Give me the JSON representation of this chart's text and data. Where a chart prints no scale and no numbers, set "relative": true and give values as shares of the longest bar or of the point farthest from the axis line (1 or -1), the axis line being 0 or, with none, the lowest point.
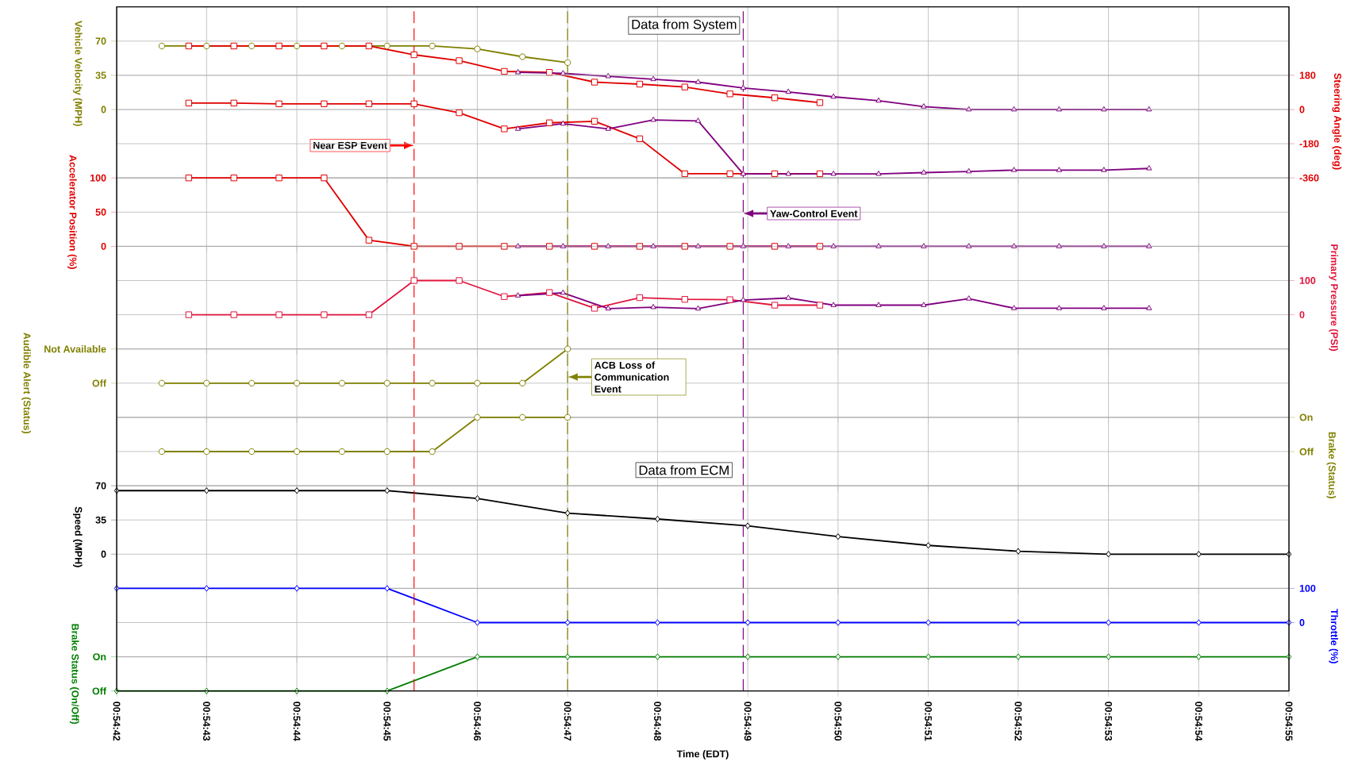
{
  "chart_data": [
    {
      "type": "line",
      "title": "Data from System",
      "ylabel": "Vehicle Velocity (MPH)",
      "y2label": "Steering Angle (deg)",
      "grid": true,
      "tick_labels": "y",
      "xlim": [
        0.911667,
        0.915278
      ],
      "xticks": [
        {
          "value": 0.911667,
          "label": null
        },
        {
          "value": 0.911944,
          "label": null
        },
        {
          "value": 0.912222,
          "label": null
        },
        {
          "value": 0.9125,
          "label": null
        },
        {
          "value": 0.912778,
          "label": null
        },
        {
          "value": 0.913056,
          "label": null
        },
        {
          "value": 0.913333,
          "label": null
        },
        {
          "value": 0.913611,
          "label": null
        },
        {
          "value": 0.913889,
          "label": null
        },
        {
          "value": 0.914167,
          "label": null
        },
        {
          "value": 0.914444,
          "label": null
        },
        {
          "value": 0.914722,
          "label": null
        },
        {
          "value": 0.915,
          "label": null
        },
        {
          "value": 0.915278,
          "label": null
        }
      ],
      "ylim": [
        -70,
        105
      ],
      "yticks": [
        0,
        35,
        70
      ],
      "y2lim": [
        -360,
        540
      ],
      "y2ticks": [
        -360,
        -180,
        0,
        180
      ],
      "series": [
        {
          "color": "#808000",
          "marker": "circle",
          "axis": "y",
          "x": [
            0.911806,
            0.911944,
            0.912083,
            0.912222,
            0.912361,
            0.9125,
            0.912639,
            0.912778,
            0.912917,
            0.913056
          ],
          "values": [
            65,
            65,
            65,
            65,
            65,
            65,
            65,
            62,
            54,
            48
          ]
        },
        {
          "color": "#e00000",
          "marker": "square",
          "axis": "y",
          "x": [
            0.911889,
            0.912028,
            0.912167,
            0.912306,
            0.912444,
            0.912583,
            0.912722,
            0.912861,
            0.913,
            0.913139,
            0.913278,
            0.913417,
            0.913556,
            0.913694,
            0.913833
          ],
          "values": [
            65,
            65,
            65,
            65,
            65,
            56,
            50,
            39,
            38,
            28,
            26,
            23,
            16,
            12,
            7
          ]
        },
        {
          "color": "#800080",
          "marker": "triangle",
          "axis": "y",
          "x": [
            0.912903,
            0.913042,
            0.913181,
            0.91332,
            0.913458,
            0.913597,
            0.913736,
            0.913875,
            0.914014,
            0.914153,
            0.914292,
            0.914431,
            0.91457,
            0.914708,
            0.914847
          ],
          "values": [
            38,
            37,
            34,
            31,
            28,
            22,
            18,
            13,
            9,
            3,
            0,
            0,
            0,
            0,
            0
          ]
        },
        {
          "color": "#e00000",
          "marker": "square",
          "axis": "y2",
          "x": [
            0.911889,
            0.912028,
            0.912167,
            0.912306,
            0.912444,
            0.912583,
            0.912722,
            0.912861,
            0.913,
            0.913139,
            0.913278,
            0.913417,
            0.913556,
            0.913694,
            0.913833
          ],
          "values": [
            34,
            34,
            30,
            30,
            30,
            30,
            -17,
            -102,
            -70,
            -62,
            -154,
            -338,
            -338,
            -338,
            -338
          ]
        },
        {
          "color": "#800080",
          "marker": "triangle",
          "axis": "y2",
          "x": [
            0.912903,
            0.913042,
            0.913181,
            0.91332,
            0.913458,
            0.913597,
            0.913736,
            0.913875,
            0.914014,
            0.914153,
            0.914292,
            0.914431,
            0.91457,
            0.914708,
            0.914847
          ],
          "values": [
            -102,
            -75,
            -102,
            -55,
            -60,
            -339,
            -339,
            -339,
            -339,
            -332,
            -326,
            -319,
            -319,
            -319,
            -310
          ]
        }
      ],
      "ref_lines": [
        {
          "axis": "x",
          "value": 0.912583,
          "label": "Near ESP Event",
          "color": "#ff0000",
          "line_style": "dashed"
        },
        {
          "axis": "x",
          "value": 0.913056,
          "color": "#808000",
          "line_style": "dashed"
        },
        {
          "axis": "x",
          "value": 0.913597,
          "color": "#800080",
          "line_style": "dashed"
        }
      ]
    },
    {
      "type": "line",
      "ylabel": "Accelerator Position (%)",
      "grid": true,
      "tick_labels": "y",
      "xlim": [
        0.911667,
        0.915278
      ],
      "xticks": [
        {
          "value": 0.911667,
          "label": null
        },
        {
          "value": 0.911944,
          "label": null
        },
        {
          "value": 0.912222,
          "label": null
        },
        {
          "value": 0.9125,
          "label": null
        },
        {
          "value": 0.912778,
          "label": null
        },
        {
          "value": 0.913056,
          "label": null
        },
        {
          "value": 0.913333,
          "label": null
        },
        {
          "value": 0.913611,
          "label": null
        },
        {
          "value": 0.913889,
          "label": null
        },
        {
          "value": 0.914167,
          "label": null
        },
        {
          "value": 0.914444,
          "label": null
        },
        {
          "value": 0.914722,
          "label": null
        },
        {
          "value": 0.915,
          "label": null
        },
        {
          "value": 0.915278,
          "label": null
        }
      ],
      "ylim": [
        0,
        100
      ],
      "yticks": [
        0,
        50,
        100
      ],
      "series": [
        {
          "color": "#e00000",
          "marker": "square",
          "axis": "y",
          "x": [
            0.911889,
            0.912028,
            0.912167,
            0.912306,
            0.912444,
            0.912583,
            0.912722,
            0.912861,
            0.913,
            0.913139,
            0.913278,
            0.913417,
            0.913556,
            0.913694,
            0.913833
          ],
          "values": [
            100,
            100,
            100,
            100,
            9,
            0,
            0,
            0,
            0,
            0,
            0,
            0,
            0,
            0,
            0
          ]
        },
        {
          "color": "#800080",
          "marker": "triangle",
          "axis": "y",
          "x": [
            0.912903,
            0.913042,
            0.913181,
            0.91332,
            0.913458,
            0.913597,
            0.913736,
            0.913875,
            0.914014,
            0.914153,
            0.914292,
            0.914431,
            0.91457,
            0.914708,
            0.914847
          ],
          "values": [
            0,
            0,
            0,
            0,
            0,
            0,
            0,
            0,
            0,
            0,
            0,
            0,
            0,
            0,
            0
          ]
        }
      ],
      "ref_lines": [
        {
          "axis": "x",
          "value": 0.912583,
          "color": "#ff0000",
          "line_style": "dashed"
        },
        {
          "axis": "x",
          "value": 0.913056,
          "color": "#808000",
          "line_style": "dashed"
        },
        {
          "axis": "x",
          "value": 0.913597,
          "label": "Yaw-Control Event",
          "color": "#800080",
          "line_style": "dashed"
        }
      ]
    },
    {
      "type": "line",
      "y2label": "Primary Pressure (PSI)",
      "grid": true,
      "tick_labels": "y",
      "xlim": [
        0.911667,
        0.915278
      ],
      "xticks": [
        {
          "value": 0.911667,
          "label": null
        },
        {
          "value": 0.911944,
          "label": null
        },
        {
          "value": 0.912222,
          "label": null
        },
        {
          "value": 0.9125,
          "label": null
        },
        {
          "value": 0.912778,
          "label": null
        },
        {
          "value": 0.913056,
          "label": null
        },
        {
          "value": 0.913333,
          "label": null
        },
        {
          "value": 0.913611,
          "label": null
        },
        {
          "value": 0.913889,
          "label": null
        },
        {
          "value": 0.914167,
          "label": null
        },
        {
          "value": 0.914444,
          "label": null
        },
        {
          "value": 0.914722,
          "label": null
        },
        {
          "value": 0.915,
          "label": null
        },
        {
          "value": 0.915278,
          "label": null
        }
      ],
      "y2lim": [
        -100,
        200
      ],
      "y2ticks": [
        0,
        100
      ],
      "series": [
        {
          "color": "#e0143c",
          "marker": "square",
          "axis": "y2",
          "x": [
            0.911889,
            0.912028,
            0.912167,
            0.912306,
            0.912444,
            0.912583,
            0.912722,
            0.912861,
            0.913,
            0.913139,
            0.913278,
            0.913417,
            0.913556,
            0.913694,
            0.913833
          ],
          "values": [
            0,
            0,
            0,
            0,
            0,
            100,
            100,
            53,
            65,
            19,
            50,
            45,
            44,
            28,
            28
          ]
        },
        {
          "color": "#800080",
          "marker": "triangle",
          "axis": "y2",
          "x": [
            0.912903,
            0.913042,
            0.913181,
            0.91332,
            0.913458,
            0.913597,
            0.913736,
            0.913875,
            0.914014,
            0.914153,
            0.914292,
            0.914431,
            0.91457,
            0.914708,
            0.914847
          ],
          "values": [
            56,
            64,
            18,
            22,
            18,
            43,
            49,
            28,
            28,
            28,
            47,
            19,
            19,
            19,
            19
          ]
        }
      ],
      "ref_lines": [
        {
          "axis": "x",
          "value": 0.912583,
          "color": "#ff0000",
          "line_style": "dashed"
        },
        {
          "axis": "x",
          "value": 0.913056,
          "color": "#808000",
          "line_style": "dashed"
        },
        {
          "axis": "x",
          "value": 0.913597,
          "color": "#800080",
          "line_style": "dashed"
        }
      ]
    },
    {
      "type": "line",
      "ylabel": "Audible Alert (Status)",
      "grid": true,
      "tick_labels": "y",
      "relative": true,
      "annotations": [
        "Off",
        "Not Available"
      ],
      "xlim": [
        0.911667,
        0.915278
      ],
      "xticks": [
        {
          "value": 0.911667,
          "label": null
        },
        {
          "value": 0.911944,
          "label": null
        },
        {
          "value": 0.912222,
          "label": null
        },
        {
          "value": 0.9125,
          "label": null
        },
        {
          "value": 0.912778,
          "label": null
        },
        {
          "value": 0.913056,
          "label": null
        },
        {
          "value": 0.913333,
          "label": null
        },
        {
          "value": 0.913611,
          "label": null
        },
        {
          "value": 0.913889,
          "label": null
        },
        {
          "value": 0.914167,
          "label": null
        },
        {
          "value": 0.914444,
          "label": null
        },
        {
          "value": 0.914722,
          "label": null
        },
        {
          "value": 0.915,
          "label": null
        },
        {
          "value": 0.915278,
          "label": null
        }
      ],
      "series": [
        {
          "color": "#808000",
          "marker": "circle",
          "axis": "y",
          "x": [
            0.911806,
            0.911944,
            0.912083,
            0.912222,
            0.912361,
            0.9125,
            0.912639,
            0.912778,
            0.912917,
            0.913056
          ],
          "values": [
            0,
            0,
            0,
            0,
            0,
            0,
            0,
            0,
            0,
            1
          ]
        }
      ],
      "ref_lines": [
        {
          "axis": "x",
          "value": 0.912583,
          "color": "#ff0000",
          "line_style": "dashed"
        },
        {
          "axis": "x",
          "value": 0.913056,
          "label": "ACB Loss of Communication Event",
          "color": "#808000",
          "line_style": "dashed"
        },
        {
          "axis": "x",
          "value": 0.913597,
          "color": "#800080",
          "line_style": "dashed"
        }
      ]
    },
    {
      "type": "line",
      "y2label": "Brake (Status)",
      "grid": true,
      "tick_labels": "y",
      "relative": true,
      "annotations": [
        "Off",
        "On"
      ],
      "xlim": [
        0.911667,
        0.915278
      ],
      "xticks": [
        {
          "value": 0.911667,
          "label": null
        },
        {
          "value": 0.911944,
          "label": null
        },
        {
          "value": 0.912222,
          "label": null
        },
        {
          "value": 0.9125,
          "label": null
        },
        {
          "value": 0.912778,
          "label": null
        },
        {
          "value": 0.913056,
          "label": null
        },
        {
          "value": 0.913333,
          "label": null
        },
        {
          "value": 0.913611,
          "label": null
        },
        {
          "value": 0.913889,
          "label": null
        },
        {
          "value": 0.914167,
          "label": null
        },
        {
          "value": 0.914444,
          "label": null
        },
        {
          "value": 0.914722,
          "label": null
        },
        {
          "value": 0.915,
          "label": null
        },
        {
          "value": 0.915278,
          "label": null
        }
      ],
      "series": [
        {
          "color": "#808000",
          "marker": "circle",
          "axis": "y2",
          "x": [
            0.911806,
            0.911944,
            0.912083,
            0.912222,
            0.912361,
            0.9125,
            0.912639,
            0.912778,
            0.912917,
            0.913056
          ],
          "values": [
            0,
            0,
            0,
            0,
            0,
            0,
            0,
            1,
            1,
            1
          ]
        }
      ],
      "ref_lines": [
        {
          "axis": "x",
          "value": 0.912583,
          "color": "#ff0000",
          "line_style": "dashed"
        },
        {
          "axis": "x",
          "value": 0.913056,
          "color": "#808000",
          "line_style": "dashed"
        },
        {
          "axis": "x",
          "value": 0.913597,
          "color": "#800080",
          "line_style": "dashed"
        }
      ]
    },
    {
      "type": "line",
      "title": "Data from ECM",
      "ylabel": "Speed (MPH)",
      "grid": true,
      "tick_labels": "y",
      "xlim": [
        0.911667,
        0.915278
      ],
      "xticks": [
        {
          "value": 0.911667,
          "label": null
        },
        {
          "value": 0.911944,
          "label": null
        },
        {
          "value": 0.912222,
          "label": null
        },
        {
          "value": 0.9125,
          "label": null
        },
        {
          "value": 0.912778,
          "label": null
        },
        {
          "value": 0.913056,
          "label": null
        },
        {
          "value": 0.913333,
          "label": null
        },
        {
          "value": 0.913611,
          "label": null
        },
        {
          "value": 0.913889,
          "label": null
        },
        {
          "value": 0.914167,
          "label": null
        },
        {
          "value": 0.914444,
          "label": null
        },
        {
          "value": 0.914722,
          "label": null
        },
        {
          "value": 0.915,
          "label": null
        },
        {
          "value": 0.915278,
          "label": null
        }
      ],
      "ylim": [
        -35,
        70
      ],
      "yticks": [
        0,
        35,
        70
      ],
      "series": [
        {
          "color": "#000000",
          "marker": "diamond",
          "axis": "y",
          "x": [
            0.911667,
            0.911944,
            0.912222,
            0.9125,
            0.912778,
            0.913056,
            0.913333,
            0.913611,
            0.913889,
            0.914167,
            0.914444,
            0.914722,
            0.915,
            0.915278
          ],
          "values": [
            65,
            65,
            65,
            65,
            57,
            42,
            36,
            29,
            18,
            9,
            3,
            0,
            0,
            0
          ]
        }
      ],
      "ref_lines": [
        {
          "axis": "x",
          "value": 0.912583,
          "color": "#ff0000",
          "line_style": "dashed"
        },
        {
          "axis": "x",
          "value": 0.913056,
          "color": "#808000",
          "line_style": "dashed"
        },
        {
          "axis": "x",
          "value": 0.913597,
          "color": "#800080",
          "line_style": "dashed"
        }
      ]
    },
    {
      "type": "line",
      "y2label": "Throttle (%)",
      "grid": true,
      "tick_labels": "y",
      "xlim": [
        0.911667,
        0.915278
      ],
      "xticks": [
        {
          "value": 0.911667,
          "label": null
        },
        {
          "value": 0.911944,
          "label": null
        },
        {
          "value": 0.912222,
          "label": null
        },
        {
          "value": 0.9125,
          "label": null
        },
        {
          "value": 0.912778,
          "label": null
        },
        {
          "value": 0.913056,
          "label": null
        },
        {
          "value": 0.913333,
          "label": null
        },
        {
          "value": 0.913611,
          "label": null
        },
        {
          "value": 0.913889,
          "label": null
        },
        {
          "value": 0.914167,
          "label": null
        },
        {
          "value": 0.914444,
          "label": null
        },
        {
          "value": 0.914722,
          "label": null
        },
        {
          "value": 0.915,
          "label": null
        },
        {
          "value": 0.915278,
          "label": null
        }
      ],
      "y2lim": [
        -100,
        100
      ],
      "y2ticks": [
        0,
        100
      ],
      "series": [
        {
          "color": "#0000ff",
          "marker": "diamond",
          "axis": "y2",
          "x": [
            0.911667,
            0.911944,
            0.912222,
            0.9125,
            0.912778,
            0.913056,
            0.913333,
            0.913611,
            0.913889,
            0.914167,
            0.914444,
            0.914722,
            0.915,
            0.915278
          ],
          "values": [
            100,
            100,
            100,
            100,
            0,
            0,
            0,
            0,
            0,
            0,
            0,
            0,
            0,
            0
          ]
        }
      ],
      "ref_lines": [
        {
          "axis": "x",
          "value": 0.912583,
          "color": "#ff0000",
          "line_style": "dashed"
        },
        {
          "axis": "x",
          "value": 0.913056,
          "color": "#808000",
          "line_style": "dashed"
        },
        {
          "axis": "x",
          "value": 0.913597,
          "color": "#800080",
          "line_style": "dashed"
        }
      ]
    },
    {
      "type": "line",
      "ylabel": "Brake Status (On/Off)",
      "xlabel": "Time (EDT)",
      "grid": true,
      "relative": true,
      "annotations": [
        "Off",
        "On"
      ],
      "xlim": [
        0.911667,
        0.915278
      ],
      "xticks": [
        {
          "value": 0.911667,
          "label": "00:54:42"
        },
        {
          "value": 0.911944,
          "label": "00:54:43"
        },
        {
          "value": 0.912222,
          "label": "00:54:44"
        },
        {
          "value": 0.9125,
          "label": "00:54:45"
        },
        {
          "value": 0.912778,
          "label": "00:54:46"
        },
        {
          "value": 0.913056,
          "label": "00:54:47"
        },
        {
          "value": 0.913333,
          "label": "00:54:48"
        },
        {
          "value": 0.913611,
          "label": "00:54:49"
        },
        {
          "value": 0.913889,
          "label": "00:54:50"
        },
        {
          "value": 0.914167,
          "label": "00:54:51"
        },
        {
          "value": 0.914444,
          "label": "00:54:52"
        },
        {
          "value": 0.914722,
          "label": "00:54:53"
        },
        {
          "value": 0.915,
          "label": "00:54:54"
        },
        {
          "value": 0.915278,
          "label": "00:54:55"
        }
      ],
      "series": [
        {
          "color": "#008000",
          "marker": "diamond",
          "axis": "y",
          "x": [
            0.911667,
            0.911944,
            0.912222,
            0.9125,
            0.912778,
            0.913056,
            0.913333,
            0.913611,
            0.913889,
            0.914167,
            0.914444,
            0.914722,
            0.915,
            0.915278
          ],
          "values": [
            0,
            0,
            0,
            0,
            1,
            1,
            1,
            1,
            1,
            1,
            1,
            1,
            1,
            1
          ]
        }
      ],
      "ref_lines": [
        {
          "axis": "x",
          "value": 0.912583,
          "color": "#ff0000",
          "line_style": "dashed"
        },
        {
          "axis": "x",
          "value": 0.913056,
          "color": "#808000",
          "line_style": "dashed"
        },
        {
          "axis": "x",
          "value": 0.913597,
          "color": "#800080",
          "line_style": "dashed"
        }
      ]
    }
  ]
}
